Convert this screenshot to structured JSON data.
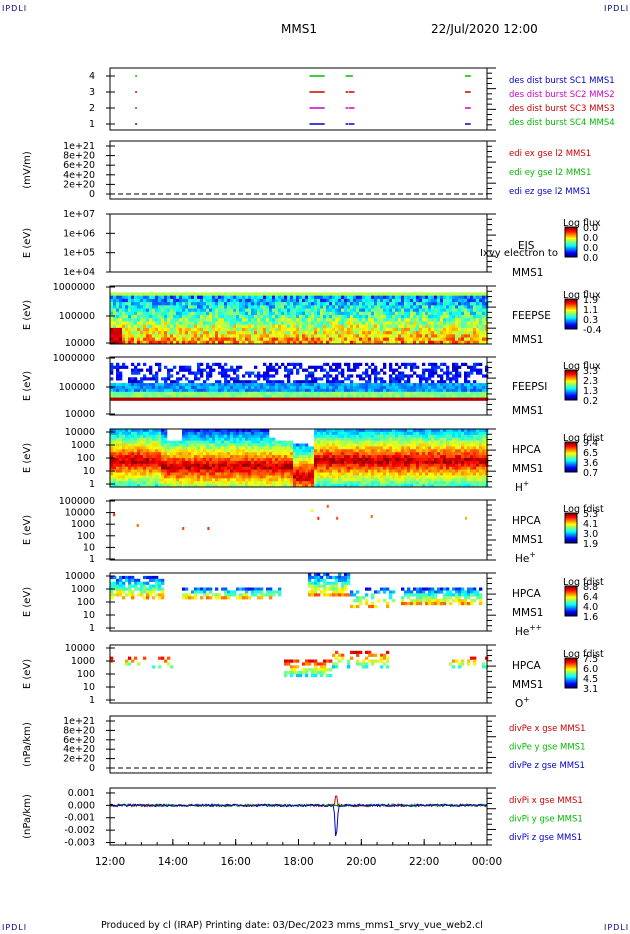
{
  "corners": {
    "tl": "IPDLI",
    "tr": "IPDLI",
    "bl": "IPDLI",
    "br": "IPDLI"
  },
  "header": {
    "spacecraft": "MMS1",
    "datetime": "22/Jul/2020 12:00"
  },
  "footer": {
    "text": "Produced by cl (IRAP)   Printing date: 03/Dec/2023   mms_mms1_srvy_vue_web2.cl"
  },
  "colors": {
    "blue": "#0000cc",
    "magenta": "#cc00cc",
    "red": "#cc0000",
    "green": "#00bb00"
  },
  "chart_data": {
    "type": "stacked time-series panels (spectrograms and line plots)",
    "x_axis": {
      "range": [
        "12:00",
        "00:00"
      ],
      "ticks": [
        "12:00",
        "14:00",
        "16:00",
        "18:00",
        "20:00",
        "22:00",
        "00:00"
      ]
    },
    "panels": [
      {
        "id": "burst",
        "yticks": [
          "4",
          "3",
          "2",
          "1"
        ],
        "legend": [
          {
            "text": "des dist burst SC1 MMS1",
            "color": "#0000cc"
          },
          {
            "text": "des dist burst SC2 MMS2",
            "color": "#cc00cc"
          },
          {
            "text": "des dist burst SC3 MMS3",
            "color": "#cc0000"
          },
          {
            "text": "des dist burst SC4 MMS4",
            "color": "#00bb00"
          }
        ],
        "intervals_hours": [
          {
            "level": 4,
            "color": "#00bb00",
            "ranges": [
              [
                12.8,
                12.83
              ],
              [
                18.35,
                18.8
              ],
              [
                19.5,
                19.7
              ],
              [
                23.3,
                23.45
              ]
            ]
          },
          {
            "level": 3,
            "color": "#cc0000",
            "ranges": [
              [
                12.8,
                12.83
              ],
              [
                18.35,
                18.8
              ],
              [
                19.5,
                19.55
              ],
              [
                19.6,
                19.75
              ],
              [
                23.3,
                23.45
              ]
            ]
          },
          {
            "level": 2,
            "color": "#cc00cc",
            "ranges": [
              [
                12.8,
                12.83
              ],
              [
                18.35,
                18.8
              ],
              [
                19.5,
                19.55
              ],
              [
                19.6,
                19.75
              ],
              [
                23.3,
                23.45
              ]
            ]
          },
          {
            "level": 1,
            "color": "#0000cc",
            "ranges": [
              [
                12.8,
                12.83
              ],
              [
                18.35,
                18.8
              ],
              [
                19.5,
                19.55
              ],
              [
                19.6,
                19.75
              ],
              [
                23.3,
                23.45
              ]
            ]
          }
        ]
      },
      {
        "id": "edi",
        "ylabel": "(mV/m)",
        "yticks": [
          "1e+21",
          "8e+20",
          "6e+20",
          "4e+20",
          "2e+20",
          "0"
        ],
        "legend": [
          {
            "text": "edi ex gse l2 MMS1",
            "color": "#cc0000"
          },
          {
            "text": "edi ey gse l2 MMS1",
            "color": "#00bb00"
          },
          {
            "text": "edi ez gse l2 MMS1",
            "color": "#0000cc"
          }
        ]
      },
      {
        "id": "eis",
        "ylabel": "E (eV)",
        "yticks": [
          "1e+07",
          "1e+06",
          "1e+05",
          "1e+04"
        ],
        "labels": [
          "EIS",
          "MMS1"
        ],
        "overlay": "Ixvy electron to",
        "colorbar": {
          "title": "Log flux",
          "ticks": [
            "0.0",
            "0.0",
            "0.0",
            "0.0"
          ]
        }
      },
      {
        "id": "feepse",
        "ylabel": "E (eV)",
        "yticks": [
          "1000000",
          "100000",
          "10000"
        ],
        "labels": [
          "FEEPSE",
          "MMS1"
        ],
        "colorbar": {
          "title": "Log flux",
          "ticks": [
            "1.9",
            "1.1",
            "0.3",
            "-0.4"
          ]
        }
      },
      {
        "id": "feepsi",
        "ylabel": "E (eV)",
        "yticks": [
          "1000000",
          "100000",
          "10000"
        ],
        "labels": [
          "FEEPSI",
          "MMS1"
        ],
        "colorbar": {
          "title": "Log flux",
          "ticks": [
            "3.3",
            "2.3",
            "1.3",
            "0.2"
          ]
        }
      },
      {
        "id": "hpca_h",
        "ylabel": "E (eV)",
        "yticks": [
          "10000",
          "1000",
          "100",
          "10",
          "1"
        ],
        "labels": [
          "HPCA",
          "MMS1"
        ],
        "species": {
          "base": "H",
          "sup": "+"
        },
        "colorbar": {
          "title": "Log fdist",
          "ticks": [
            "9.4",
            "6.5",
            "3.6",
            "0.7"
          ]
        }
      },
      {
        "id": "hpca_he",
        "ylabel": "E (eV)",
        "yticks": [
          "100000",
          "10000",
          "1000",
          "100",
          "10",
          "1"
        ],
        "labels": [
          "HPCA",
          "MMS1"
        ],
        "species": {
          "base": "He",
          "sup": "+"
        },
        "colorbar": {
          "title": "Log fdist",
          "ticks": [
            "5.3",
            "4.1",
            "3.0",
            "1.9"
          ]
        }
      },
      {
        "id": "hpca_hepp",
        "ylabel": "E (eV)",
        "yticks": [
          "10000",
          "1000",
          "100",
          "10",
          "1"
        ],
        "labels": [
          "HPCA",
          "MMS1"
        ],
        "species": {
          "base": "He",
          "sup": "++"
        },
        "colorbar": {
          "title": "Log fdist",
          "ticks": [
            "8.8",
            "6.4",
            "4.0",
            "1.6"
          ]
        }
      },
      {
        "id": "hpca_o",
        "ylabel": "E (eV)",
        "yticks": [
          "10000",
          "1000",
          "100",
          "10",
          "1"
        ],
        "labels": [
          "HPCA",
          "MMS1"
        ],
        "species": {
          "base": "O",
          "sup": "+"
        },
        "colorbar": {
          "title": "Log fdist",
          "ticks": [
            "7.5",
            "6.0",
            "4.5",
            "3.1"
          ]
        }
      },
      {
        "id": "divpe",
        "ylabel": "(nPa/km)",
        "yticks": [
          "1e+21",
          "8e+20",
          "6e+20",
          "4e+20",
          "2e+20",
          "0"
        ],
        "legend": [
          {
            "text": "divPe x gse MMS1",
            "color": "#cc0000"
          },
          {
            "text": "divPe y gse MMS1",
            "color": "#00bb00"
          },
          {
            "text": "divPe z gse MMS1",
            "color": "#0000cc"
          }
        ]
      },
      {
        "id": "divpi",
        "ylabel": "(nPa/km)",
        "yticks": [
          "0.001",
          "0.000",
          "-0.001",
          "-0.002",
          "-0.003"
        ],
        "legend": [
          {
            "text": "divPi x gse MMS1",
            "color": "#cc0000"
          },
          {
            "text": "divPi y gse MMS1",
            "color": "#00bb00"
          },
          {
            "text": "divPi z gse MMS1",
            "color": "#0000cc"
          }
        ],
        "ylim": [
          -0.0032,
          0.0014
        ],
        "spike": {
          "time_hours": 19.2,
          "min": -0.003,
          "max": 0.0011
        }
      }
    ]
  }
}
